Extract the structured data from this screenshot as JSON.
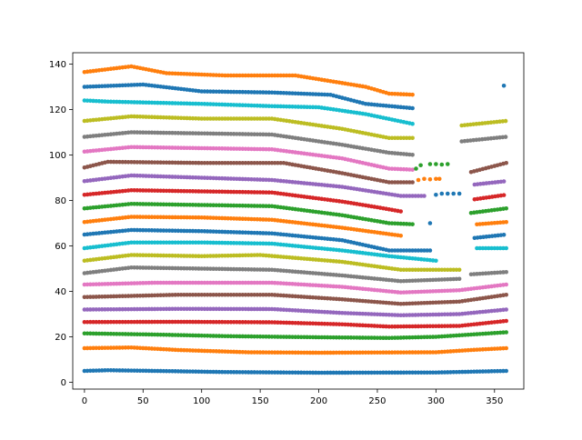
{
  "chart_data": {
    "type": "scatter",
    "title": "",
    "xlabel": "",
    "ylabel": "",
    "xlim": [
      -10,
      375
    ],
    "ylim": [
      -3,
      145
    ],
    "xticks": [
      0,
      50,
      100,
      150,
      200,
      250,
      300,
      350
    ],
    "yticks": [
      0,
      20,
      40,
      60,
      80,
      100,
      120,
      140
    ],
    "grid": false,
    "legend": "none",
    "x_step": 2.5,
    "series": [
      {
        "color": "#1f77b4",
        "knots": [
          [
            0,
            5
          ],
          [
            20,
            5.3
          ],
          [
            60,
            5
          ],
          [
            120,
            4.5
          ],
          [
            200,
            4.2
          ],
          [
            300,
            4.3
          ],
          [
            360,
            5
          ]
        ]
      },
      {
        "color": "#ff7f0e",
        "knots": [
          [
            0,
            15
          ],
          [
            40,
            15.3
          ],
          [
            80,
            14.2
          ],
          [
            140,
            13.2
          ],
          [
            200,
            13
          ],
          [
            300,
            13.2
          ],
          [
            330,
            14.2
          ],
          [
            360,
            15
          ]
        ]
      },
      {
        "color": "#2ca02c",
        "knots": [
          [
            0,
            21.5
          ],
          [
            60,
            21
          ],
          [
            120,
            20.3
          ],
          [
            200,
            19.8
          ],
          [
            260,
            19.5
          ],
          [
            300,
            20
          ],
          [
            360,
            22
          ]
        ]
      },
      {
        "color": "#d62728",
        "knots": [
          [
            0,
            26.5
          ],
          [
            80,
            26.6
          ],
          [
            160,
            26.4
          ],
          [
            220,
            25.5
          ],
          [
            260,
            24.5
          ],
          [
            320,
            24.8
          ],
          [
            360,
            27
          ]
        ]
      },
      {
        "color": "#9467bd",
        "knots": [
          [
            0,
            32
          ],
          [
            80,
            32.3
          ],
          [
            160,
            32.2
          ],
          [
            220,
            30.5
          ],
          [
            270,
            29.5
          ],
          [
            320,
            30
          ],
          [
            360,
            32
          ]
        ]
      },
      {
        "color": "#8c564b",
        "knots": [
          [
            0,
            37.5
          ],
          [
            80,
            38.5
          ],
          [
            160,
            38.5
          ],
          [
            220,
            36.5
          ],
          [
            270,
            34.5
          ],
          [
            320,
            35.5
          ],
          [
            360,
            38.5
          ]
        ]
      },
      {
        "color": "#e377c2",
        "knots": [
          [
            0,
            43
          ],
          [
            60,
            43.8
          ],
          [
            160,
            43.8
          ],
          [
            220,
            42
          ],
          [
            270,
            39.5
          ],
          [
            320,
            40.5
          ],
          [
            360,
            43
          ]
        ]
      },
      {
        "color": "#7f7f7f",
        "knots": [
          [
            0,
            48
          ],
          [
            40,
            50.5
          ],
          [
            100,
            50
          ],
          [
            160,
            49.5
          ],
          [
            220,
            47
          ],
          [
            270,
            44.5
          ],
          [
            320,
            45.5
          ]
        ],
        "breaks": [
          320
        ],
        "extra": [
          [
            330,
            47.5
          ],
          [
            360,
            48.5
          ]
        ]
      },
      {
        "color": "#bcbd22",
        "knots": [
          [
            0,
            53.5
          ],
          [
            40,
            56
          ],
          [
            100,
            55.5
          ],
          [
            150,
            56
          ],
          [
            220,
            53
          ],
          [
            270,
            49.5
          ],
          [
            320,
            49.5
          ]
        ]
      },
      {
        "color": "#17becf",
        "knots": [
          [
            0,
            59
          ],
          [
            40,
            61.5
          ],
          [
            100,
            61.5
          ],
          [
            160,
            61
          ],
          [
            220,
            58
          ],
          [
            260,
            55.5
          ],
          [
            300,
            53.5
          ]
        ],
        "breaks": [
          300
        ],
        "extra": [
          [
            335,
            59
          ],
          [
            360,
            59
          ]
        ]
      },
      {
        "color": "#1f77b4",
        "knots": [
          [
            0,
            65
          ],
          [
            40,
            67
          ],
          [
            100,
            66.5
          ],
          [
            160,
            65.5
          ],
          [
            220,
            62.5
          ],
          [
            260,
            58
          ],
          [
            295,
            58
          ]
        ],
        "breaks": [
          295
        ],
        "extra": [
          [
            333,
            63.5
          ],
          [
            360,
            65
          ]
        ]
      },
      {
        "color": "#ff7f0e",
        "knots": [
          [
            0,
            70.5
          ],
          [
            40,
            72.8
          ],
          [
            100,
            72.5
          ],
          [
            160,
            71.5
          ],
          [
            220,
            68
          ],
          [
            270,
            64.5
          ]
        ],
        "breaks": [
          270
        ],
        "extra": [
          [
            335,
            69.5
          ],
          [
            360,
            70.5
          ]
        ]
      },
      {
        "color": "#2ca02c",
        "knots": [
          [
            0,
            76.5
          ],
          [
            40,
            78.5
          ],
          [
            100,
            78
          ],
          [
            160,
            77.5
          ],
          [
            220,
            73.5
          ],
          [
            260,
            70
          ],
          [
            282,
            69.5
          ]
        ],
        "breaks": [
          282
        ],
        "extra": [
          [
            330,
            74.5
          ],
          [
            360,
            76.5
          ]
        ]
      },
      {
        "color": "#d62728",
        "knots": [
          [
            0,
            82.5
          ],
          [
            40,
            84.5
          ],
          [
            100,
            84
          ],
          [
            160,
            83.5
          ],
          [
            220,
            79.5
          ],
          [
            250,
            77
          ],
          [
            272,
            75
          ]
        ],
        "breaks": [
          272
        ],
        "extra": [
          [
            333,
            80.5
          ],
          [
            360,
            82.5
          ]
        ]
      },
      {
        "color": "#9467bd",
        "knots": [
          [
            0,
            88.5
          ],
          [
            40,
            91
          ],
          [
            100,
            90
          ],
          [
            160,
            89
          ],
          [
            220,
            86
          ],
          [
            270,
            82
          ],
          [
            290,
            82
          ]
        ],
        "breaks": [
          290
        ],
        "extra": [
          [
            333,
            87
          ],
          [
            360,
            88.5
          ]
        ]
      },
      {
        "color": "#8c564b",
        "knots": [
          [
            0,
            94.5
          ],
          [
            20,
            97
          ],
          [
            100,
            96.5
          ],
          [
            170,
            96.5
          ],
          [
            220,
            92
          ],
          [
            260,
            88
          ],
          [
            282,
            88
          ]
        ],
        "breaks": [
          282
        ],
        "extra": [
          [
            330,
            92.5
          ],
          [
            360,
            96.5
          ]
        ]
      },
      {
        "color": "#e377c2",
        "knots": [
          [
            0,
            101.5
          ],
          [
            40,
            103.5
          ],
          [
            100,
            103
          ],
          [
            160,
            102.5
          ],
          [
            220,
            98.5
          ],
          [
            260,
            94
          ],
          [
            282,
            93.5
          ]
        ]
      },
      {
        "color": "#7f7f7f",
        "knots": [
          [
            0,
            108
          ],
          [
            40,
            110
          ],
          [
            100,
            109.5
          ],
          [
            160,
            109
          ],
          [
            220,
            104.5
          ],
          [
            260,
            101
          ],
          [
            282,
            100
          ]
        ],
        "breaks": [
          282
        ],
        "extra": [
          [
            322,
            106
          ],
          [
            360,
            108
          ]
        ]
      },
      {
        "color": "#bcbd22",
        "knots": [
          [
            0,
            115
          ],
          [
            40,
            117
          ],
          [
            100,
            116
          ],
          [
            160,
            116
          ],
          [
            220,
            111.5
          ],
          [
            260,
            107.5
          ],
          [
            282,
            107.5
          ]
        ],
        "breaks": [
          282
        ],
        "extra": [
          [
            322,
            113
          ],
          [
            360,
            115
          ]
        ]
      },
      {
        "color": "#17becf",
        "knots": [
          [
            0,
            124
          ],
          [
            20,
            123.5
          ],
          [
            100,
            122.5
          ],
          [
            160,
            121.5
          ],
          [
            200,
            121
          ],
          [
            240,
            118
          ],
          [
            282,
            113.5
          ]
        ]
      },
      {
        "color": "#1f77b4",
        "knots": [
          [
            0,
            130
          ],
          [
            50,
            131
          ],
          [
            100,
            128
          ],
          [
            160,
            127.5
          ],
          [
            210,
            126.5
          ],
          [
            240,
            122.5
          ],
          [
            282,
            120.5
          ]
        ]
      },
      {
        "color": "#ff7f0e",
        "knots": [
          [
            0,
            136.5
          ],
          [
            40,
            139
          ],
          [
            70,
            136
          ],
          [
            120,
            135
          ],
          [
            180,
            135
          ],
          [
            240,
            130
          ],
          [
            260,
            127
          ],
          [
            282,
            126.5
          ]
        ]
      }
    ],
    "extra_points": [
      {
        "color": "#2ca02c",
        "points": [
          [
            283,
            94
          ],
          [
            287,
            95.5
          ],
          [
            295,
            96
          ],
          [
            300,
            96
          ],
          [
            305,
            95.8
          ],
          [
            310,
            96
          ]
        ]
      },
      {
        "color": "#1f77b4",
        "points": [
          [
            300,
            82.5
          ],
          [
            305,
            83
          ],
          [
            310,
            83
          ],
          [
            315,
            83
          ],
          [
            320,
            83
          ]
        ]
      },
      {
        "color": "#ff7f0e",
        "points": [
          [
            285,
            89
          ],
          [
            290,
            89.5
          ],
          [
            295,
            89.3
          ],
          [
            300,
            89.5
          ],
          [
            303,
            89.5
          ]
        ]
      },
      {
        "color": "#1f77b4",
        "points": [
          [
            295,
            70
          ],
          [
            358,
            130.5
          ]
        ]
      }
    ]
  }
}
